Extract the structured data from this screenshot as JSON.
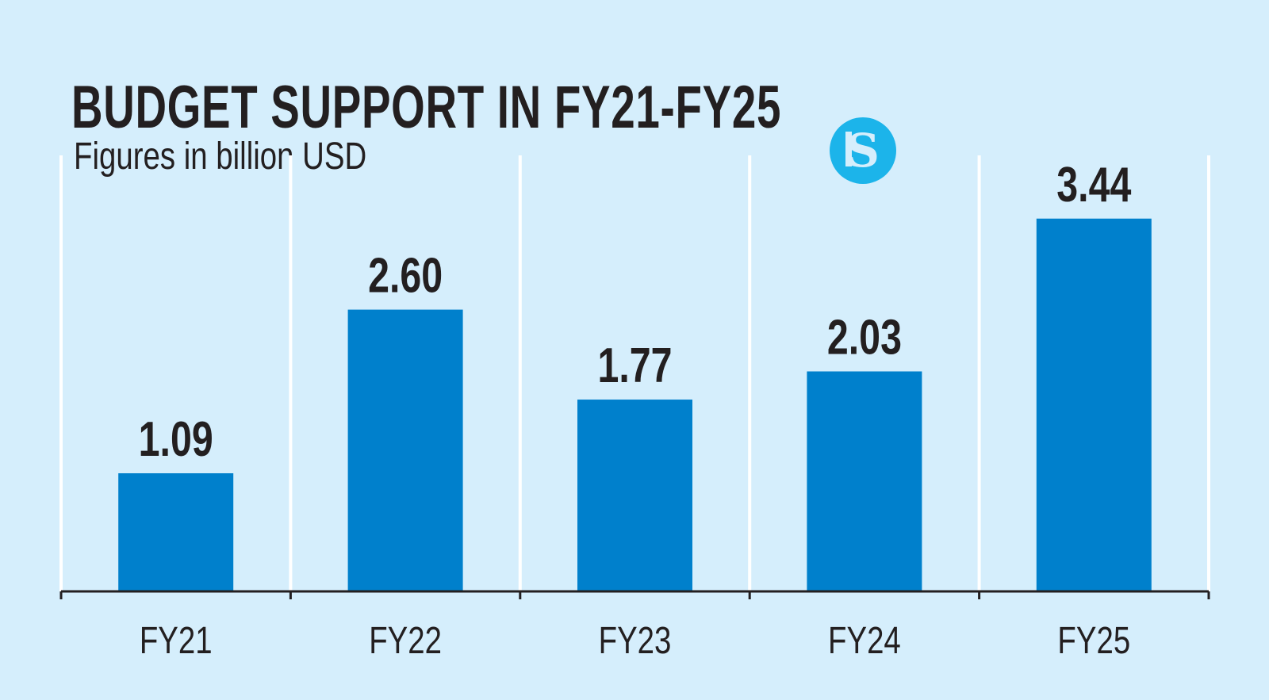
{
  "chart_data": {
    "type": "bar",
    "title": "BUDGET SUPPORT IN FY21-FY25",
    "subtitle": "Figures in billion USD",
    "categories": [
      "FY21",
      "FY22",
      "FY23",
      "FY24",
      "FY25"
    ],
    "values": [
      1.09,
      2.6,
      1.77,
      2.03,
      3.44
    ],
    "data_labels": [
      "1.09",
      "2.60",
      "1.77",
      "2.03",
      "3.44"
    ],
    "xlabel": "",
    "ylabel": "",
    "ylim": [
      0,
      3.9
    ],
    "grid": "vertical separators",
    "legend": "none"
  },
  "colors": {
    "background": "#d5eefc",
    "bar": "#0080cc",
    "logo": "#1cb4ea",
    "gridline": "#ffffff"
  },
  "logo": {
    "text": "S",
    "icon": "the-daily-star-logo"
  }
}
